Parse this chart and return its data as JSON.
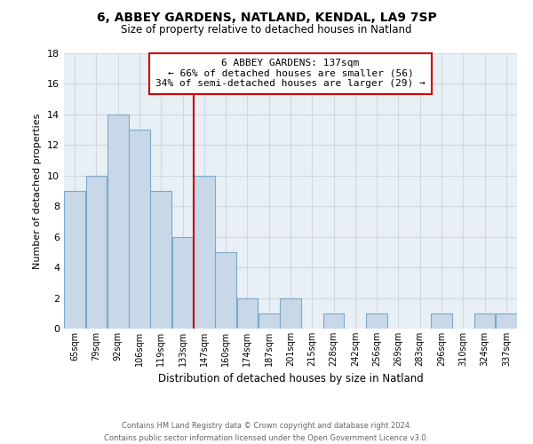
{
  "title": "6, ABBEY GARDENS, NATLAND, KENDAL, LA9 7SP",
  "subtitle": "Size of property relative to detached houses in Natland",
  "xlabel": "Distribution of detached houses by size in Natland",
  "ylabel": "Number of detached properties",
  "categories": [
    "65sqm",
    "79sqm",
    "92sqm",
    "106sqm",
    "119sqm",
    "133sqm",
    "147sqm",
    "160sqm",
    "174sqm",
    "187sqm",
    "201sqm",
    "215sqm",
    "228sqm",
    "242sqm",
    "256sqm",
    "269sqm",
    "283sqm",
    "296sqm",
    "310sqm",
    "324sqm",
    "337sqm"
  ],
  "values": [
    9,
    10,
    14,
    13,
    9,
    6,
    10,
    5,
    2,
    1,
    2,
    0,
    1,
    0,
    1,
    0,
    0,
    1,
    0,
    1,
    1
  ],
  "bar_color": "#c8d8e8",
  "bar_edge_color": "#7aaac8",
  "grid_color": "#d0d8e0",
  "vline_color": "#cc0000",
  "annotation_text": "6 ABBEY GARDENS: 137sqm\n← 66% of detached houses are smaller (56)\n34% of semi-detached houses are larger (29) →",
  "annotation_box_edge": "#cc0000",
  "ylim": [
    0,
    18
  ],
  "yticks": [
    0,
    2,
    4,
    6,
    8,
    10,
    12,
    14,
    16,
    18
  ],
  "footer_line1": "Contains HM Land Registry data © Crown copyright and database right 2024.",
  "footer_line2": "Contains public sector information licensed under the Open Government Licence v3.0.",
  "bg_color": "#e8eff5",
  "vline_index": 5.5
}
